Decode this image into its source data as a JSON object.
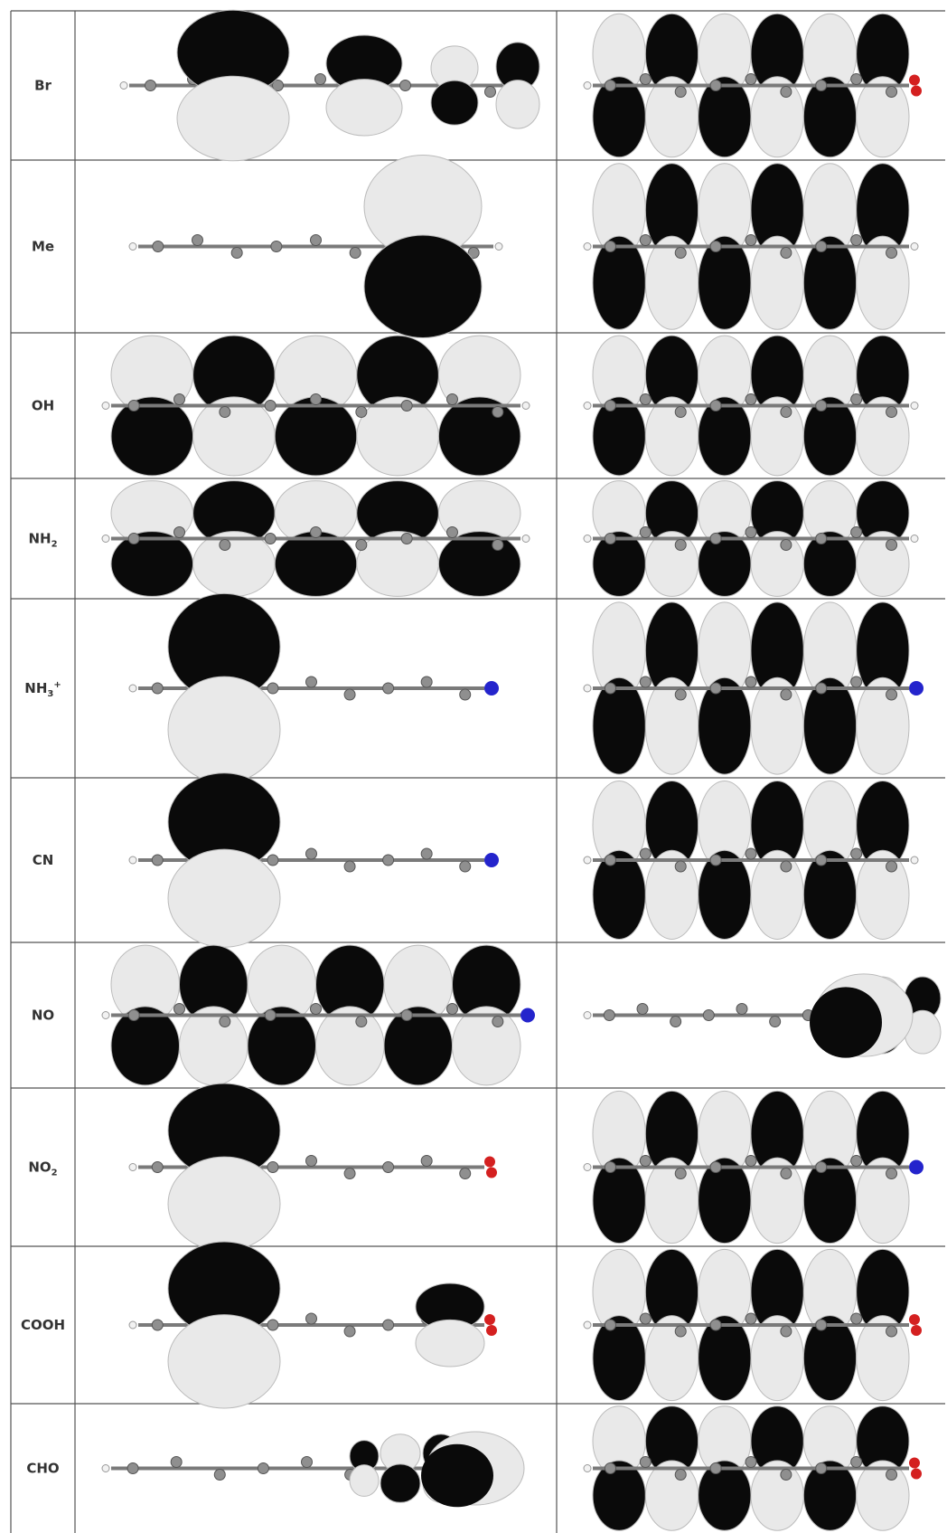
{
  "colors": {
    "lobe_dark": "#0a0a0a",
    "lobe_light": "#e9e9e9",
    "carbon": "#8f8f8f",
    "nitrogen": "#2424cc",
    "oxygen": "#d42020",
    "grid": "#555555"
  },
  "rows": [
    {
      "label": "Br",
      "label_main": "Br",
      "label_sub": "",
      "label_sup": "",
      "homo": {
        "kind": "mixed",
        "lobes": [
          2,
          2,
          1,
          1
        ],
        "terminal": "oxygen"
      },
      "lumo": {
        "kind": "full",
        "lobes": 6,
        "terminal": "oxygen"
      }
    },
    {
      "label": "Me",
      "label_main": "Me",
      "label_sub": "",
      "label_sup": "",
      "homo": {
        "kind": "single-right",
        "terminal": "hydrogen"
      },
      "lumo": {
        "kind": "full",
        "lobes": 6,
        "terminal": "hydrogen"
      }
    },
    {
      "label": "OH",
      "label_main": "OH",
      "label_sub": "",
      "label_sup": "",
      "homo": {
        "kind": "full",
        "lobes": 5,
        "terminal": "hydrogen"
      },
      "lumo": {
        "kind": "full",
        "lobes": 6,
        "terminal": "hydrogen"
      }
    },
    {
      "label": "NH₂",
      "label_main": "NH",
      "label_sub": "2",
      "label_sup": "",
      "homo": {
        "kind": "full",
        "lobes": 5,
        "terminal": "hydrogen"
      },
      "lumo": {
        "kind": "full",
        "lobes": 6,
        "terminal": "hydrogen"
      }
    },
    {
      "label": "NH₃⁺",
      "label_main": "NH",
      "label_sub": "3",
      "label_sup": "+",
      "homo": {
        "kind": "single-left",
        "terminal": "nitrogen"
      },
      "lumo": {
        "kind": "full",
        "lobes": 6,
        "terminal": "nitrogen"
      }
    },
    {
      "label": "CN",
      "label_main": "CN",
      "label_sub": "",
      "label_sup": "",
      "homo": {
        "kind": "single-left",
        "terminal": "nitrogen"
      },
      "lumo": {
        "kind": "full",
        "lobes": 6,
        "terminal": "hydrogen"
      }
    },
    {
      "label": "NO",
      "label_main": "NO",
      "label_sub": "",
      "label_sup": "",
      "homo": {
        "kind": "full",
        "lobes": 6,
        "terminal": "nitrogen"
      },
      "lumo": {
        "kind": "cluster-right",
        "terminal": "oxygen"
      }
    },
    {
      "label": "NO₂",
      "label_main": "NO",
      "label_sub": "2",
      "label_sup": "",
      "homo": {
        "kind": "single-left",
        "terminal": "oxygen"
      },
      "lumo": {
        "kind": "full",
        "lobes": 6,
        "terminal": "nitrogen"
      }
    },
    {
      "label": "COOH",
      "label_main": "COOH",
      "label_sub": "",
      "label_sup": "",
      "homo": {
        "kind": "single-left-mid",
        "terminal": "oxygen"
      },
      "lumo": {
        "kind": "full",
        "lobes": 6,
        "terminal": "oxygen"
      }
    },
    {
      "label": "CHO",
      "label_main": "CHO",
      "label_sub": "",
      "label_sup": "",
      "homo": {
        "kind": "cluster-right",
        "terminal": "oxygen"
      },
      "lumo": {
        "kind": "full",
        "lobes": 6,
        "terminal": "oxygen"
      }
    }
  ]
}
